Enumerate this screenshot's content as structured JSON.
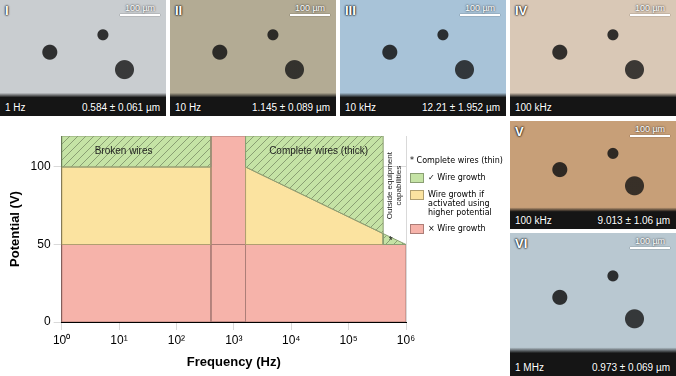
{
  "chart_data": {
    "type": "area",
    "x_label": "Frequency (Hz)",
    "y_label": "Potential (V)",
    "log": "x",
    "xlim": [
      1,
      1000000
    ],
    "xticks": [
      {
        "value": 1,
        "label": "10⁰"
      },
      {
        "value": 10,
        "label": "10¹"
      },
      {
        "value": 100,
        "label": "10²"
      },
      {
        "value": 1000,
        "label": "10³"
      },
      {
        "value": 10000,
        "label": "10⁴"
      },
      {
        "value": 100000,
        "label": "10⁵"
      },
      {
        "value": 1000000,
        "label": "10⁶"
      }
    ],
    "ylim": [
      0,
      120
    ],
    "yticks": [
      0,
      50,
      100
    ],
    "grid": true,
    "legend": "right",
    "legend_note": "* Complete wires (thin)",
    "series": [
      {
        "name": "✓ Wire growth",
        "color": "#c5e3a5",
        "regions": [
          {
            "x": [
              1,
              400,
              400,
              1
            ],
            "values": [
              100,
              100,
              120,
              120
            ]
          },
          {
            "x": [
              1600,
              400000,
              400000,
              1600
            ],
            "values": [
              100,
              57,
              120,
              120
            ]
          },
          {
            "x": [
              400000,
              1000000,
              400000
            ],
            "values": [
              50,
              50,
              57
            ]
          }
        ]
      },
      {
        "name": "Wire growth if activated using higher potential",
        "color": "#fbe3a0",
        "regions": [
          {
            "x": [
              1,
              400,
              400,
              1
            ],
            "values": [
              50,
              50,
              100,
              100
            ]
          },
          {
            "x": [
              1600,
              400000,
              400000,
              1600
            ],
            "values": [
              50,
              50,
              57,
              100
            ]
          }
        ]
      },
      {
        "name": "× Wire growth",
        "color": "#f6b3aa",
        "regions": [
          {
            "x": [
              1,
              1000000,
              1000000,
              1
            ],
            "values": [
              0,
              0,
              50,
              50
            ]
          },
          {
            "x": [
              400,
              1600,
              1600,
              400
            ],
            "values": [
              0,
              0,
              120,
              120
            ]
          }
        ]
      }
    ],
    "annotations": [
      {
        "text": "Broken wires",
        "x": 12,
        "y": 110
      },
      {
        "text": "Complete wires (thick)",
        "x": 30000,
        "y": 110
      },
      {
        "text": "Outside equipment capabilities",
        "x": 632000,
        "y": 88
      },
      {
        "text": "*",
        "x": 540000,
        "y": 52
      }
    ]
  },
  "panels": [
    {
      "label": "I",
      "scale_bar": "100 µm",
      "frequency": "1 Hz",
      "measurement": "0.584 ± 0.061 µm"
    },
    {
      "label": "II",
      "scale_bar": "100 µm",
      "frequency": "10 Hz",
      "measurement": "1.145 ± 0.089 µm"
    },
    {
      "label": "III",
      "scale_bar": "100 µm",
      "frequency": "10 kHz",
      "measurement": "12.21 ± 1.952 µm"
    },
    {
      "label": "IV",
      "scale_bar": "100 µm",
      "frequency": "100 kHz"
    },
    {
      "label": "V",
      "scale_bar": "100 µm",
      "frequency": "100 kHz",
      "measurement": "9.013 ± 1.06 µm"
    },
    {
      "label": "VI",
      "scale_bar": "100 µm",
      "frequency": "1 MHz",
      "measurement": "0.973 ± 0.069 µm"
    }
  ]
}
